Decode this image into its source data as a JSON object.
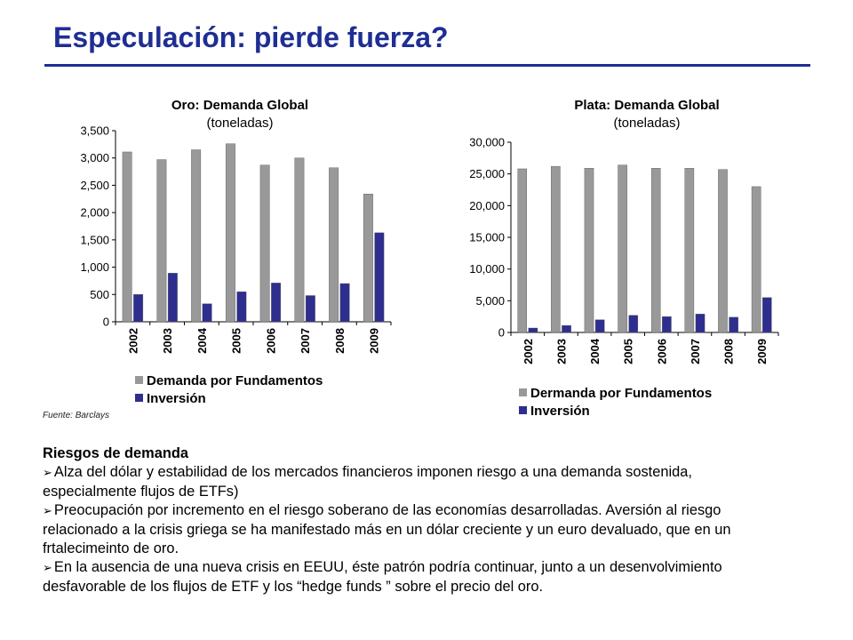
{
  "page": {
    "title": "Especulación: pierde fuerza?",
    "source": "Fuente: Barclays"
  },
  "colors": {
    "title": "#1f2e93",
    "fundamentos": "#999999",
    "inversion": "#2e2e8f"
  },
  "chart_data": [
    {
      "type": "bar",
      "title": "Oro: Demanda Global",
      "subtitle": "(toneladas)",
      "categories": [
        "2002",
        "2003",
        "2004",
        "2005",
        "2006",
        "2007",
        "2008",
        "2009"
      ],
      "series": [
        {
          "name": "Demanda por Fundamentos",
          "color": "#999999",
          "values": [
            3110,
            2970,
            3150,
            3260,
            2870,
            3000,
            2820,
            2340
          ]
        },
        {
          "name": "Inversión",
          "color": "#2e2e8f",
          "values": [
            500,
            890,
            330,
            550,
            710,
            480,
            700,
            1630
          ]
        }
      ],
      "ylim": [
        0,
        3500
      ],
      "yticks": [
        0,
        500,
        1000,
        1500,
        2000,
        2500,
        3000,
        3500
      ],
      "ytick_labels": [
        "0",
        "500",
        "1,000",
        "1,500",
        "2,000",
        "2,500",
        "3,000",
        "3,500"
      ],
      "grid": false,
      "legend": "bottom"
    },
    {
      "type": "bar",
      "title": "Plata: Demanda Global",
      "subtitle": "(toneladas)",
      "categories": [
        "2002",
        "2003",
        "2004",
        "2005",
        "2006",
        "2007",
        "2008",
        "2009"
      ],
      "series": [
        {
          "name": "Dermanda por Fundamentos",
          "color": "#999999",
          "values": [
            25800,
            26200,
            25900,
            26400,
            25900,
            25900,
            25700,
            23000
          ]
        },
        {
          "name": "Inversión",
          "color": "#2e2e8f",
          "values": [
            700,
            1100,
            2000,
            2700,
            2500,
            2900,
            2400,
            5500
          ]
        }
      ],
      "ylim": [
        0,
        30000
      ],
      "yticks": [
        0,
        5000,
        10000,
        15000,
        20000,
        25000,
        30000
      ],
      "ytick_labels": [
        "0",
        "5,000",
        "10,000",
        "15,000",
        "20,000",
        "25,000",
        "30,000"
      ],
      "grid": false,
      "legend": "bottom"
    }
  ],
  "risks": {
    "heading": "Riesgos de demanda",
    "bullet_glyph": "➢",
    "items": [
      {
        "line1": "Alza del dólar y estabilidad de los mercados financieros imponen riesgo a una demanda  sostenida,",
        "line2": "especialmente flujos de ETFs)"
      },
      {
        "line1": "Preocupación por incremento en el riesgo soberano de las economías desarrolladas. Aversión al riesgo",
        "line2": "relacionado a la crisis griega se ha manifestado más en un dólar creciente y un euro devaluado, que en un",
        "line3": "frtalecimeinto de oro."
      },
      {
        "line1": "En la ausencia de una nueva crisis en EEUU, éste patrón podría continuar, junto a un desenvolvimiento",
        "line2": "desfavorable de los flujos de  ETF y los “hedge funds ” sobre el precio del oro."
      }
    ]
  }
}
